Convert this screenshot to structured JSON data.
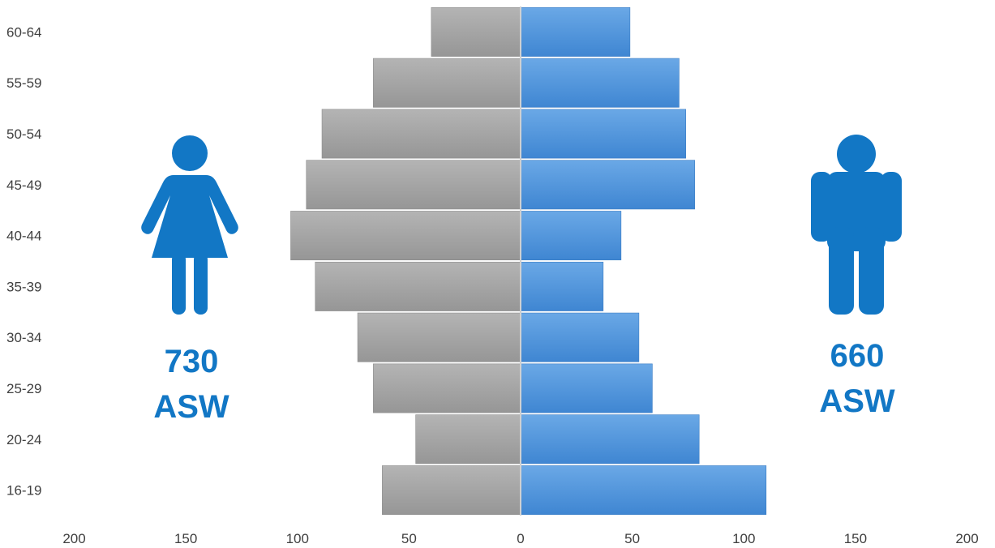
{
  "chart_data": {
    "type": "bar",
    "orientation": "horizontal",
    "layout": "population-pyramid",
    "categories": [
      "16-19",
      "20-24",
      "25-29",
      "30-34",
      "35-39",
      "40-44",
      "45-49",
      "50-54",
      "55-59",
      "60-64"
    ],
    "series": [
      {
        "side": "left",
        "color": "#a6a6a6",
        "values": [
          62,
          47,
          66,
          73,
          92,
          103,
          96,
          89,
          66,
          40
        ]
      },
      {
        "side": "right",
        "color": "#4a90d9",
        "values": [
          110,
          80,
          59,
          53,
          37,
          45,
          78,
          74,
          71,
          49
        ]
      }
    ],
    "xlim": [
      -200,
      200
    ],
    "x_tick_values": [
      -200,
      -150,
      -100,
      -50,
      0,
      50,
      100,
      150,
      200
    ],
    "x_tick_labels": [
      "200",
      "150",
      "100",
      "50",
      "0",
      "50",
      "100",
      "150",
      "200"
    ],
    "grid": false,
    "legend": "none"
  },
  "annotations": {
    "female": {
      "icon": "female-person-icon",
      "value": "730",
      "unit": "ASW",
      "color": "#1277c5"
    },
    "male": {
      "icon": "male-person-icon",
      "value": "660",
      "unit": "ASW",
      "color": "#1277c5"
    }
  }
}
